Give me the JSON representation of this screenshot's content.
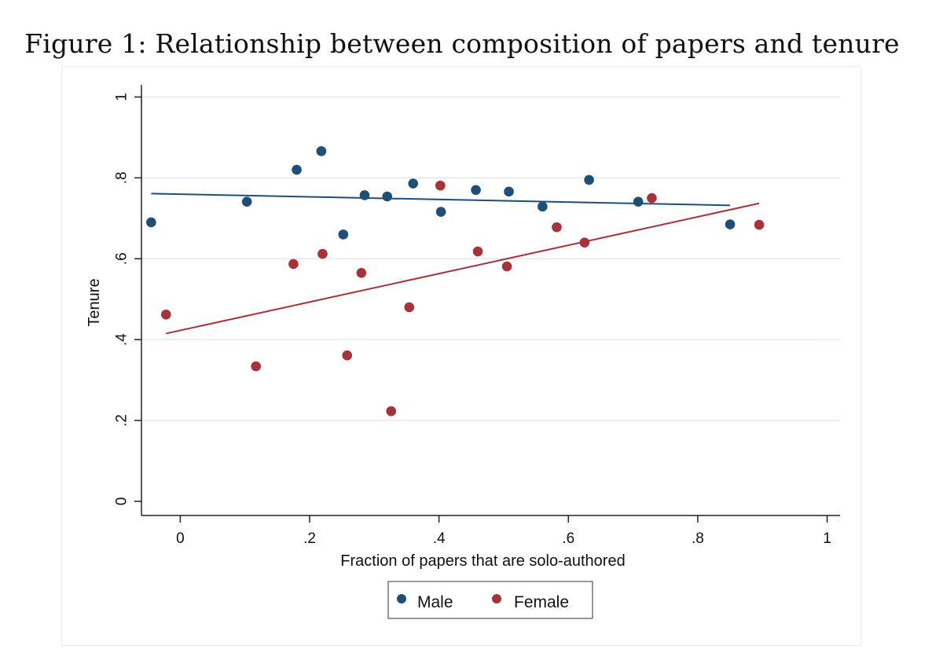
{
  "figure": {
    "title": "Figure 1: Relationship between composition of papers and tenure"
  },
  "chart_data": {
    "type": "scatter",
    "xlabel": "Fraction of papers that are solo-authored",
    "ylabel": "Tenure",
    "xlim": [
      -0.06,
      1.02
    ],
    "ylim": [
      -0.035,
      1.03
    ],
    "xticks": [
      0,
      0.2,
      0.4,
      0.6,
      0.8,
      1
    ],
    "xtick_labels": [
      "0",
      ".2",
      ".4",
      ".6",
      ".8",
      "1"
    ],
    "yticks": [
      0,
      0.2,
      0.4,
      0.6,
      0.8,
      1
    ],
    "ytick_labels": [
      "0",
      ".2",
      ".4",
      ".6",
      ".8",
      "1"
    ],
    "grid": "horizontal",
    "legend_position": "bottom",
    "series": [
      {
        "name": "Male",
        "color": "#1f4e79",
        "points": [
          {
            "x": -0.045,
            "y": 0.69
          },
          {
            "x": 0.103,
            "y": 0.741
          },
          {
            "x": 0.18,
            "y": 0.82
          },
          {
            "x": 0.218,
            "y": 0.866
          },
          {
            "x": 0.252,
            "y": 0.66
          },
          {
            "x": 0.285,
            "y": 0.757
          },
          {
            "x": 0.32,
            "y": 0.754
          },
          {
            "x": 0.36,
            "y": 0.786
          },
          {
            "x": 0.403,
            "y": 0.716
          },
          {
            "x": 0.457,
            "y": 0.77
          },
          {
            "x": 0.508,
            "y": 0.766
          },
          {
            "x": 0.56,
            "y": 0.729
          },
          {
            "x": 0.632,
            "y": 0.795
          },
          {
            "x": 0.708,
            "y": 0.741
          },
          {
            "x": 0.85,
            "y": 0.685
          }
        ],
        "fit": {
          "x": [
            -0.045,
            0.85
          ],
          "y": [
            0.761,
            0.732
          ]
        }
      },
      {
        "name": "Female",
        "color": "#a8323a",
        "points": [
          {
            "x": -0.022,
            "y": 0.462
          },
          {
            "x": 0.117,
            "y": 0.334
          },
          {
            "x": 0.175,
            "y": 0.587
          },
          {
            "x": 0.22,
            "y": 0.612
          },
          {
            "x": 0.258,
            "y": 0.361
          },
          {
            "x": 0.28,
            "y": 0.565
          },
          {
            "x": 0.326,
            "y": 0.223
          },
          {
            "x": 0.354,
            "y": 0.48
          },
          {
            "x": 0.402,
            "y": 0.781
          },
          {
            "x": 0.46,
            "y": 0.618
          },
          {
            "x": 0.505,
            "y": 0.581
          },
          {
            "x": 0.582,
            "y": 0.678
          },
          {
            "x": 0.625,
            "y": 0.64
          },
          {
            "x": 0.729,
            "y": 0.75
          },
          {
            "x": 0.895,
            "y": 0.684
          }
        ],
        "fit": {
          "x": [
            -0.022,
            0.895
          ],
          "y": [
            0.415,
            0.737
          ]
        }
      }
    ]
  }
}
